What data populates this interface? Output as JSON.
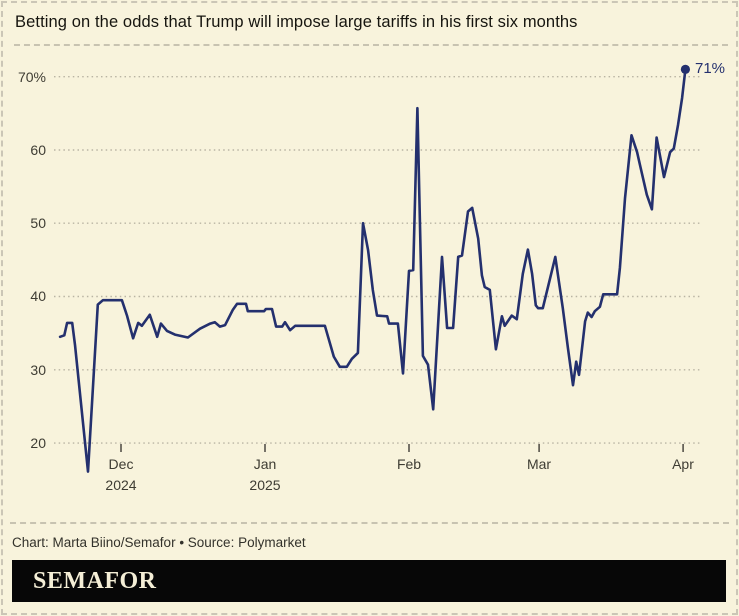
{
  "title": "Betting on the odds that Trump will impose large tariffs in his first six months",
  "footer": {
    "credit": "Chart: Marta Biino/Semafor • Source: Polymarket",
    "logo": "SEMAFOR"
  },
  "colors": {
    "background": "#f8f3dc",
    "line": "#24306e",
    "grid": "#b9b4a3",
    "tick": "#55524a",
    "axis_text": "#3e3c33",
    "title_text": "#16150f",
    "logo_bg": "#070707",
    "logo_text": "#f4eed6"
  },
  "chart_data": {
    "type": "line",
    "title": "Betting on the odds that Trump will impose large tariffs in his first six months",
    "series_name": "Polymarket odds (%)",
    "unit": "%",
    "grid": true,
    "legend": false,
    "end_label": "71%",
    "end_value": 71,
    "y_axis": {
      "min": 20,
      "max": 70,
      "ticks": [
        {
          "value": 70,
          "label": "70%"
        },
        {
          "value": 60,
          "label": "60"
        },
        {
          "value": 50,
          "label": "50"
        },
        {
          "value": 40,
          "label": "40"
        },
        {
          "value": 30,
          "label": "30"
        },
        {
          "value": 20,
          "label": "20"
        }
      ]
    },
    "x_axis": {
      "unit": "days since Dec 1, 2024",
      "ticks": [
        {
          "day": 0,
          "label": "Dec",
          "sub": "2024"
        },
        {
          "day": 31,
          "label": "Jan",
          "sub": "2025"
        },
        {
          "day": 62,
          "label": "Feb",
          "sub": ""
        },
        {
          "day": 90,
          "label": "Mar",
          "sub": ""
        },
        {
          "day": 121,
          "label": "Apr",
          "sub": ""
        }
      ]
    },
    "points": [
      [
        -13.1,
        34.5
      ],
      [
        -12.2,
        34.7
      ],
      [
        -11.6,
        36.4
      ],
      [
        -10.5,
        36.4
      ],
      [
        -9.9,
        33.4
      ],
      [
        -7.1,
        16.1
      ],
      [
        -5.0,
        38.9
      ],
      [
        -3.9,
        39.5
      ],
      [
        0.2,
        39.5
      ],
      [
        1.3,
        37.4
      ],
      [
        2.6,
        34.3
      ],
      [
        3.7,
        36.4
      ],
      [
        4.5,
        36.0
      ],
      [
        6.2,
        37.5
      ],
      [
        7.8,
        34.5
      ],
      [
        8.6,
        36.3
      ],
      [
        9.9,
        35.3
      ],
      [
        11.6,
        34.8
      ],
      [
        14.4,
        34.4
      ],
      [
        17.0,
        35.6
      ],
      [
        19.2,
        36.3
      ],
      [
        20.2,
        36.5
      ],
      [
        21.3,
        35.9
      ],
      [
        22.4,
        36.1
      ],
      [
        24.1,
        38.2
      ],
      [
        25.0,
        39.0
      ],
      [
        26.9,
        39.0
      ],
      [
        27.3,
        38.0
      ],
      [
        30.8,
        38.0
      ],
      [
        31.2,
        38.3
      ],
      [
        32.5,
        38.3
      ],
      [
        33.4,
        35.9
      ],
      [
        34.7,
        35.9
      ],
      [
        35.3,
        36.5
      ],
      [
        36.4,
        35.4
      ],
      [
        37.5,
        36.0
      ],
      [
        43.9,
        36.0
      ],
      [
        45.8,
        31.8
      ],
      [
        47.1,
        30.4
      ],
      [
        48.6,
        30.4
      ],
      [
        49.7,
        31.5
      ],
      [
        51.0,
        32.3
      ],
      [
        52.1,
        50.0
      ],
      [
        53.2,
        46.3
      ],
      [
        54.2,
        40.9
      ],
      [
        55.1,
        37.4
      ],
      [
        57.3,
        37.3
      ],
      [
        57.7,
        36.3
      ],
      [
        59.6,
        36.3
      ],
      [
        60.7,
        29.5
      ],
      [
        62.0,
        43.5
      ],
      [
        62.9,
        43.6
      ],
      [
        63.8,
        65.7
      ],
      [
        65.0,
        31.9
      ],
      [
        66.1,
        30.7
      ],
      [
        67.2,
        24.6
      ],
      [
        69.1,
        45.4
      ],
      [
        70.2,
        35.7
      ],
      [
        71.5,
        35.7
      ],
      [
        72.6,
        45.4
      ],
      [
        73.4,
        45.6
      ],
      [
        74.7,
        51.6
      ],
      [
        75.6,
        52.1
      ],
      [
        76.9,
        47.9
      ],
      [
        77.7,
        42.9
      ],
      [
        78.3,
        41.3
      ],
      [
        79.4,
        40.9
      ],
      [
        80.7,
        32.8
      ],
      [
        82.0,
        37.3
      ],
      [
        82.6,
        36.0
      ],
      [
        84.1,
        37.4
      ],
      [
        85.2,
        36.9
      ],
      [
        86.5,
        43.1
      ],
      [
        87.6,
        46.4
      ],
      [
        88.5,
        43.1
      ],
      [
        89.3,
        38.8
      ],
      [
        89.8,
        38.4
      ],
      [
        90.8,
        38.4
      ],
      [
        93.5,
        45.4
      ],
      [
        95.1,
        38.4
      ],
      [
        96.2,
        33.0
      ],
      [
        97.3,
        27.9
      ],
      [
        98.0,
        31.1
      ],
      [
        98.6,
        29.3
      ],
      [
        99.9,
        36.6
      ],
      [
        100.5,
        37.8
      ],
      [
        101.3,
        37.2
      ],
      [
        102.0,
        38.0
      ],
      [
        103.1,
        38.6
      ],
      [
        103.8,
        40.3
      ],
      [
        106.8,
        40.3
      ],
      [
        107.4,
        43.9
      ],
      [
        108.5,
        53.4
      ],
      [
        109.9,
        62.0
      ],
      [
        111.1,
        59.7
      ],
      [
        111.7,
        58.0
      ],
      [
        113.2,
        53.9
      ],
      [
        114.3,
        51.9
      ],
      [
        115.3,
        61.7
      ],
      [
        116.9,
        56.3
      ],
      [
        118.2,
        59.7
      ],
      [
        119.0,
        60.2
      ],
      [
        119.9,
        63.4
      ],
      [
        120.8,
        67.1
      ],
      [
        121.5,
        71.0
      ]
    ]
  }
}
